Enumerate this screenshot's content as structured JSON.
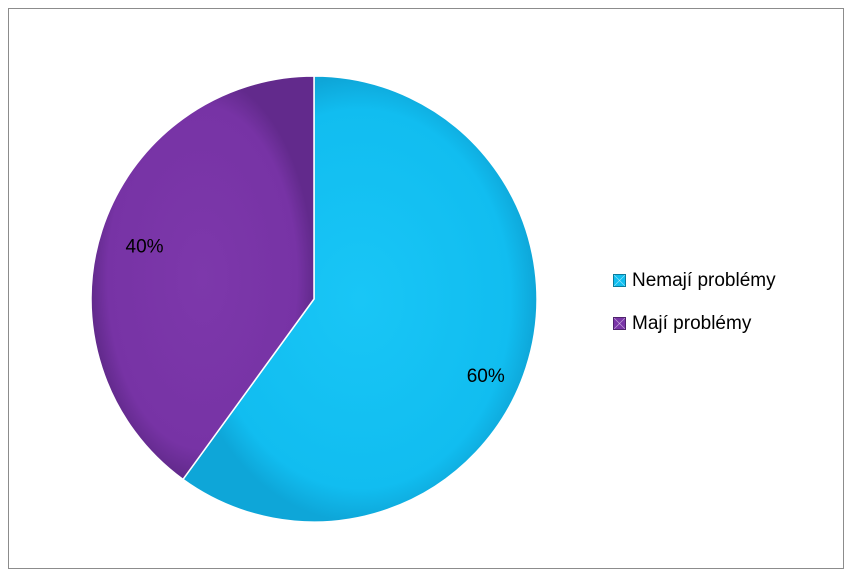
{
  "chart_data": {
    "type": "pie",
    "categories": [
      "Nemají problémy",
      "Mají problémy"
    ],
    "values": [
      60,
      40
    ],
    "data_labels": [
      "60%",
      "40%"
    ],
    "colors": [
      "#11bff0",
      "#7a35a8"
    ],
    "legend_position": "right"
  }
}
